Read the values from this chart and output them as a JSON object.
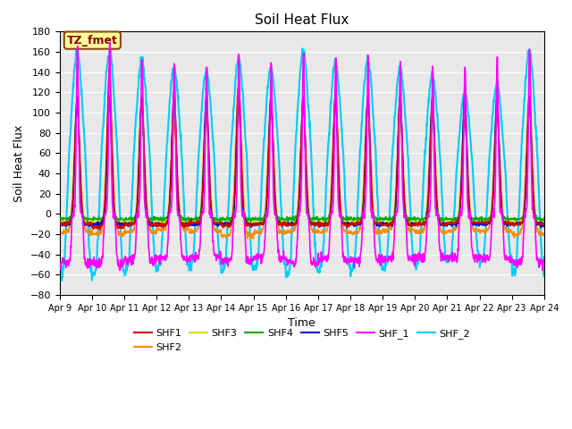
{
  "title": "Soil Heat Flux",
  "xlabel": "Time",
  "ylabel": "Soil Heat Flux",
  "ylim": [
    -80,
    180
  ],
  "yticks": [
    -80,
    -60,
    -40,
    -20,
    0,
    20,
    40,
    60,
    80,
    100,
    120,
    140,
    160,
    180
  ],
  "xtick_labels": [
    "Apr 9",
    "Apr 10",
    "Apr 11",
    "Apr 12",
    "Apr 13",
    "Apr 14",
    "Apr 15",
    "Apr 16",
    "Apr 17",
    "Apr 18",
    "Apr 19",
    "Apr 20",
    "Apr 21",
    "Apr 22",
    "Apr 23",
    "Apr 24"
  ],
  "annotation_text": "TZ_fmet",
  "annotation_bg": "#FFFF99",
  "annotation_border": "#8B4513",
  "series": {
    "SHF1": {
      "color": "#CC0000",
      "lw": 1.0
    },
    "SHF2": {
      "color": "#FF8C00",
      "lw": 1.2
    },
    "SHF3": {
      "color": "#DDDD00",
      "lw": 1.0
    },
    "SHF4": {
      "color": "#00AA00",
      "lw": 1.0
    },
    "SHF5": {
      "color": "#0000CC",
      "lw": 1.2
    },
    "SHF_1": {
      "color": "#FF00FF",
      "lw": 1.2
    },
    "SHF_2": {
      "color": "#00CCFF",
      "lw": 1.5
    }
  },
  "bg_color": "#E8E8E8",
  "grid_color": "white",
  "n_days": 15,
  "n_per_day": 96
}
